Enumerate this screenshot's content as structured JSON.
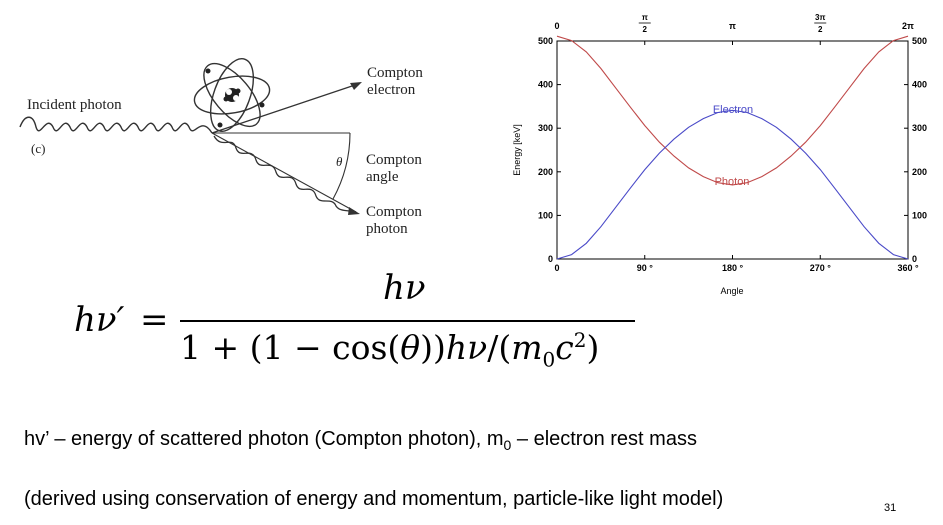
{
  "diagram": {
    "incident_label": "Incident photon",
    "panel_label": "(c)",
    "electron_label_1": "Compton",
    "electron_label_2": "electron",
    "angle_symbol": "θ",
    "angle_label_1": "Compton",
    "angle_label_2": "angle",
    "photon_label_1": "Compton",
    "photon_label_2": "photon"
  },
  "chart_data": {
    "type": "line",
    "xlabel": "Angle",
    "ylabel": "Energy [keV]",
    "xlim": [
      0,
      360
    ],
    "ylim": [
      0,
      500
    ],
    "x_ticks": [
      0,
      90,
      180,
      270,
      360
    ],
    "x_tick_labels": [
      "0",
      "90 °",
      "180 °",
      "270 °",
      "360 °"
    ],
    "top_tick_labels": [
      "0",
      "π/2",
      "π",
      "3π/2",
      "2π"
    ],
    "y_ticks": [
      0,
      100,
      200,
      300,
      400,
      500
    ],
    "y_tick_labels": [
      "0",
      "100",
      "200",
      "300",
      "400",
      "500"
    ],
    "grid": false,
    "series": [
      {
        "name": "Photon",
        "color": "#c04a4a",
        "x": [
          0,
          15,
          30,
          45,
          60,
          75,
          90,
          105,
          120,
          135,
          150,
          165,
          180,
          195,
          210,
          225,
          240,
          255,
          270,
          285,
          300,
          315,
          330,
          345,
          360
        ],
        "y": [
          511,
          501,
          475,
          437,
          393,
          349,
          306,
          268,
          236,
          209,
          189,
          175,
          170,
          175,
          189,
          209,
          236,
          268,
          306,
          349,
          393,
          437,
          475,
          501,
          511
        ]
      },
      {
        "name": "Electron",
        "color": "#4a4ac8",
        "x": [
          0,
          15,
          30,
          45,
          60,
          75,
          90,
          105,
          120,
          135,
          150,
          165,
          180,
          195,
          210,
          225,
          240,
          255,
          270,
          285,
          300,
          315,
          330,
          345,
          360
        ],
        "y": [
          0,
          10,
          36,
          74,
          118,
          162,
          205,
          243,
          275,
          302,
          322,
          336,
          341,
          336,
          322,
          302,
          275,
          243,
          205,
          162,
          118,
          74,
          36,
          10,
          0
        ]
      }
    ]
  },
  "formula": {
    "lhs": "hν′",
    "equals": "=",
    "numerator": "hν",
    "den_part1": "1 + (1 − cos(",
    "den_theta": "θ",
    "den_part2": "))",
    "den_hv": "hν",
    "den_slash": "/(",
    "den_m": "m",
    "den_m_sub": "0",
    "den_c": "c",
    "den_c_sup": "2",
    "den_close": ")"
  },
  "caption": {
    "line1_a": "hv’ – energy of scattered photon (Compton photon), m",
    "line1_sub": "0",
    "line1_b": " – electron rest mass",
    "line2": "(derived using conservation of energy and momentum,  particle-like light model)"
  },
  "page_number": "31"
}
